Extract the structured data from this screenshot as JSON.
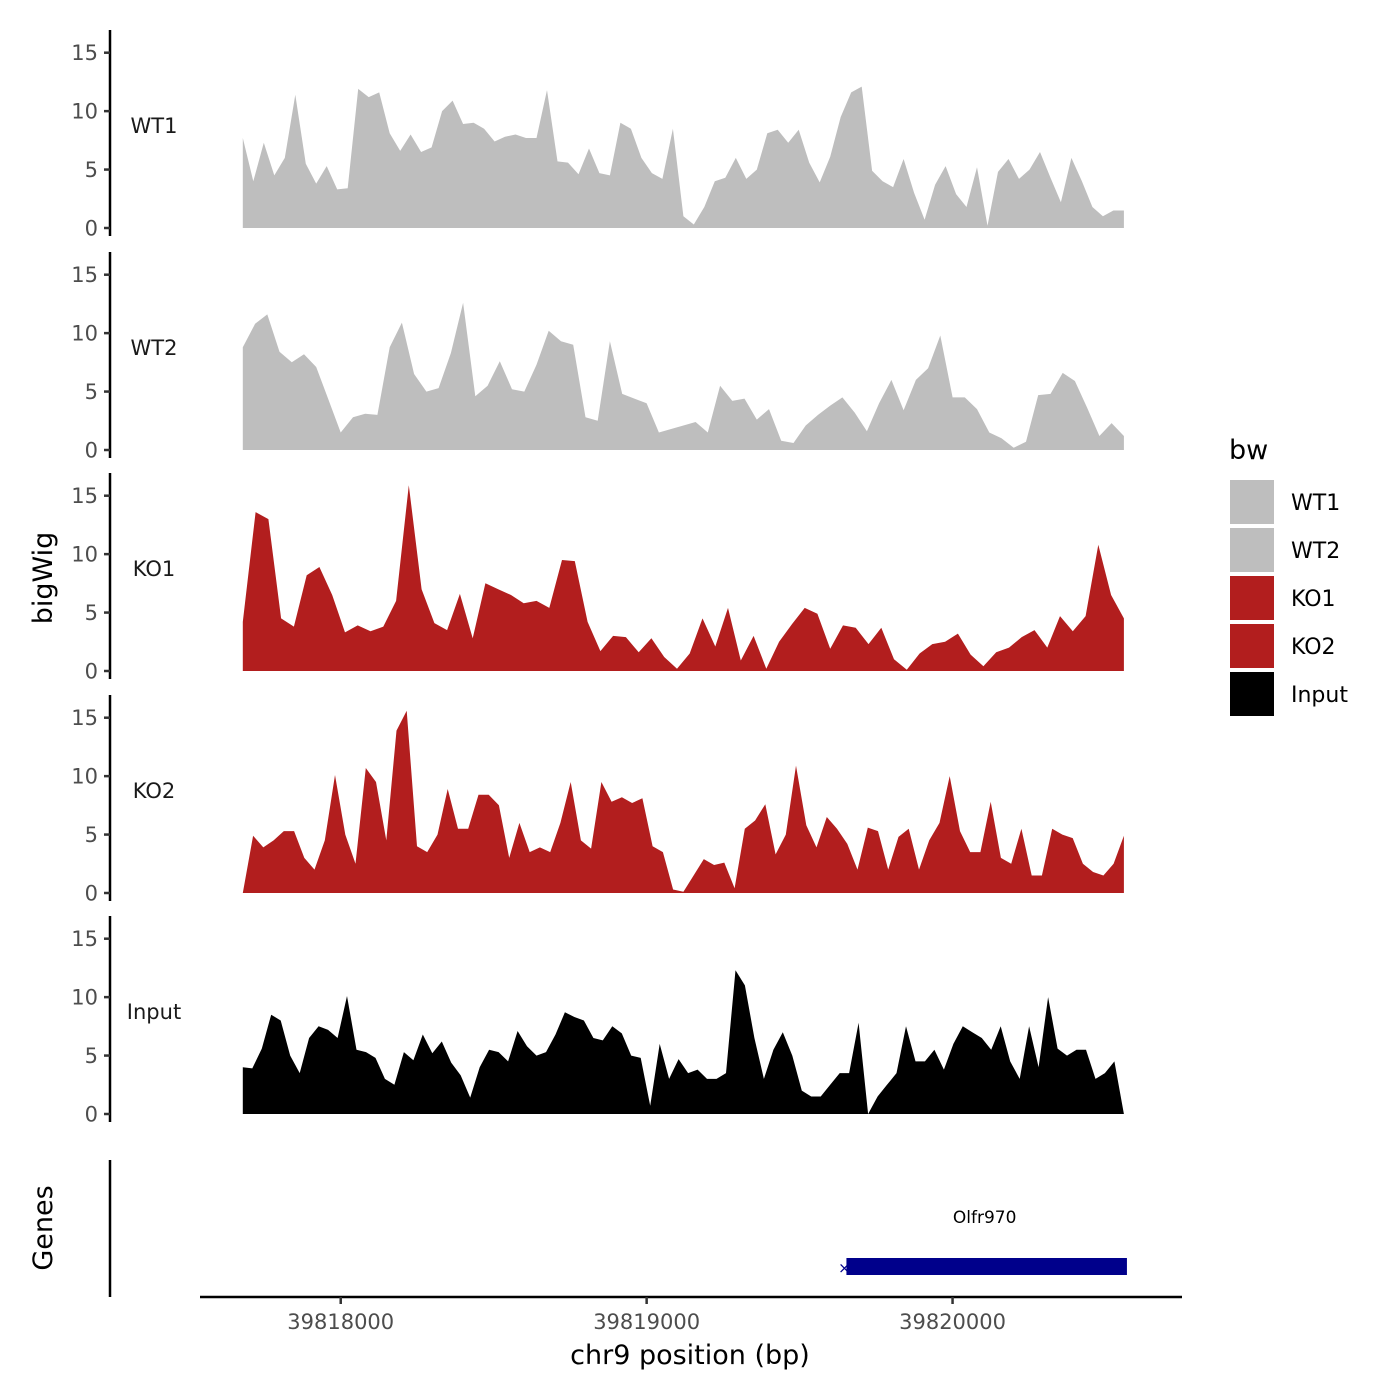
{
  "chart_data": {
    "type": "area",
    "xlabel": "chr9 position (bp)",
    "ylabel": "bigWig",
    "genes_label": "Genes",
    "xlim": [
      39817540,
      39820750
    ],
    "data_range": [
      39817680,
      39820560
    ],
    "x_ticks": [
      39818000,
      39819000,
      39820000
    ],
    "x_tick_labels": [
      "39818000",
      "39819000",
      "39820000"
    ],
    "ylim": [
      0,
      16
    ],
    "y_ticks": [
      0,
      5,
      10,
      15
    ],
    "y_tick_labels": [
      "0",
      "5",
      "10",
      "15"
    ],
    "legend": {
      "title": "bw",
      "position": "right",
      "items": [
        {
          "label": "WT1",
          "color": "#bebebe"
        },
        {
          "label": "WT2",
          "color": "#bebebe"
        },
        {
          "label": "KO1",
          "color": "#b21e1e"
        },
        {
          "label": "KO2",
          "color": "#b21e1e"
        },
        {
          "label": "Input",
          "color": "#000000"
        }
      ]
    },
    "series": [
      {
        "name": "WT1",
        "color": "#bebebe",
        "values": [
          7.7,
          4.0,
          7.3,
          4.5,
          6.0,
          11.4,
          5.5,
          3.8,
          5.3,
          3.3,
          3.4,
          11.9,
          11.2,
          11.6,
          8.1,
          6.6,
          8.0,
          6.5,
          6.9,
          10.0,
          10.9,
          8.9,
          9.0,
          8.5,
          7.4,
          7.8,
          8.0,
          7.7,
          7.7,
          11.8,
          5.7,
          5.6,
          4.6,
          6.8,
          4.7,
          4.5,
          9.0,
          8.5,
          6.0,
          4.7,
          4.2,
          8.5,
          1.0,
          0.3,
          1.8,
          4.0,
          4.3,
          6.0,
          4.2,
          5.0,
          8.1,
          8.4,
          7.3,
          8.4,
          5.6,
          3.9,
          6.1,
          9.5,
          11.6,
          12.1,
          4.9,
          4.0,
          3.5,
          5.9,
          3.0,
          0.7,
          3.7,
          5.3,
          2.9,
          1.8,
          5.2,
          0.2,
          4.8,
          5.9,
          4.2,
          5.0,
          6.5,
          4.3,
          2.2,
          6.0,
          4.0,
          1.8,
          1.0,
          1.5,
          1.5
        ]
      },
      {
        "name": "WT2",
        "color": "#bebebe",
        "values": [
          8.8,
          10.8,
          11.6,
          8.4,
          7.5,
          8.2,
          7.1,
          4.3,
          1.5,
          2.8,
          3.1,
          3.0,
          8.8,
          10.9,
          6.5,
          5.0,
          5.3,
          8.3,
          12.6,
          4.6,
          5.5,
          7.6,
          5.2,
          5.0,
          7.3,
          10.2,
          9.3,
          9.0,
          2.8,
          2.5,
          9.3,
          4.8,
          4.4,
          4.0,
          1.5,
          1.8,
          2.1,
          2.4,
          1.5,
          5.5,
          4.2,
          4.4,
          2.6,
          3.5,
          0.8,
          0.6,
          2.1,
          3.0,
          3.8,
          4.5,
          3.2,
          1.6,
          4.0,
          6.0,
          3.4,
          6.0,
          7.0,
          9.8,
          4.5,
          4.5,
          3.5,
          1.5,
          1.0,
          0.2,
          0.7,
          4.7,
          4.8,
          6.6,
          5.9,
          3.6,
          1.2,
          2.3,
          1.2
        ]
      },
      {
        "name": "KO1",
        "color": "#b21e1e",
        "values": [
          4.2,
          13.6,
          13.0,
          4.5,
          3.8,
          8.2,
          8.9,
          6.5,
          3.3,
          3.9,
          3.4,
          3.8,
          6.0,
          15.9,
          7.0,
          4.1,
          3.5,
          6.6,
          2.8,
          7.5,
          7.0,
          6.5,
          5.8,
          6.0,
          5.4,
          9.5,
          9.4,
          4.2,
          1.7,
          3.0,
          2.9,
          1.6,
          2.8,
          1.2,
          0.2,
          1.5,
          4.5,
          2.1,
          5.4,
          0.9,
          3.0,
          0.2,
          2.5,
          4.0,
          5.4,
          4.9,
          1.9,
          3.9,
          3.7,
          2.3,
          3.7,
          1.0,
          0.1,
          1.5,
          2.3,
          2.5,
          3.2,
          1.4,
          0.4,
          1.6,
          2.0,
          2.9,
          3.5,
          2.0,
          4.7,
          3.4,
          4.7,
          10.8,
          6.5,
          4.5
        ]
      },
      {
        "name": "KO2",
        "color": "#b21e1e",
        "values": [
          0.0,
          4.9,
          3.9,
          4.5,
          5.3,
          5.3,
          3.0,
          2.0,
          4.5,
          10.1,
          5.0,
          2.5,
          10.7,
          9.5,
          4.5,
          13.9,
          15.6,
          4.0,
          3.5,
          5.0,
          8.9,
          5.5,
          5.5,
          8.4,
          8.4,
          7.5,
          3.0,
          6.0,
          3.5,
          3.9,
          3.5,
          6.0,
          9.5,
          4.5,
          3.8,
          9.5,
          7.8,
          8.2,
          7.7,
          8.1,
          4.0,
          3.5,
          0.3,
          0.1,
          1.5,
          2.9,
          2.4,
          2.6,
          0.4,
          5.5,
          6.2,
          7.6,
          3.3,
          5.0,
          10.9,
          5.8,
          3.9,
          6.5,
          5.5,
          4.2,
          2.0,
          5.6,
          5.3,
          2.0,
          4.8,
          5.5,
          2.0,
          4.5,
          6.0,
          10.0,
          5.3,
          3.5,
          3.5,
          7.8,
          3.0,
          2.5,
          5.5,
          1.5,
          1.5,
          5.5,
          5.0,
          4.7,
          2.5,
          1.8,
          1.5,
          2.5,
          4.9
        ]
      },
      {
        "name": "Input",
        "color": "#000000",
        "values": [
          4.0,
          3.9,
          5.6,
          8.5,
          8.0,
          5.0,
          3.5,
          6.5,
          7.5,
          7.2,
          6.5,
          10.1,
          5.5,
          5.3,
          4.8,
          3.0,
          2.5,
          5.3,
          4.6,
          6.8,
          5.2,
          6.2,
          4.4,
          3.3,
          1.4,
          4.0,
          5.5,
          5.3,
          4.5,
          7.1,
          5.8,
          5.0,
          5.3,
          6.8,
          8.7,
          8.3,
          8.0,
          6.5,
          6.3,
          7.5,
          6.9,
          5.0,
          4.8,
          0.7,
          6.0,
          3.0,
          4.7,
          3.5,
          3.8,
          3.0,
          3.0,
          3.5,
          12.3,
          11.0,
          6.5,
          3.0,
          5.5,
          7.0,
          5.0,
          2.0,
          1.5,
          1.5,
          2.5,
          3.5,
          3.5,
          7.8,
          0.0,
          1.5,
          2.5,
          3.5,
          7.5,
          4.5,
          4.5,
          5.5,
          3.8,
          6.0,
          7.5,
          7.0,
          6.5,
          5.5,
          7.5,
          4.5,
          3.0,
          7.5,
          4.0,
          10.0,
          5.6,
          5.0,
          5.5,
          5.5,
          3.0,
          3.5,
          4.5,
          0.0
        ]
      }
    ],
    "genes": [
      {
        "name": "Olfr970",
        "start": 39819640,
        "end": 39820570,
        "strand": "-",
        "color": "#00008b"
      }
    ]
  }
}
